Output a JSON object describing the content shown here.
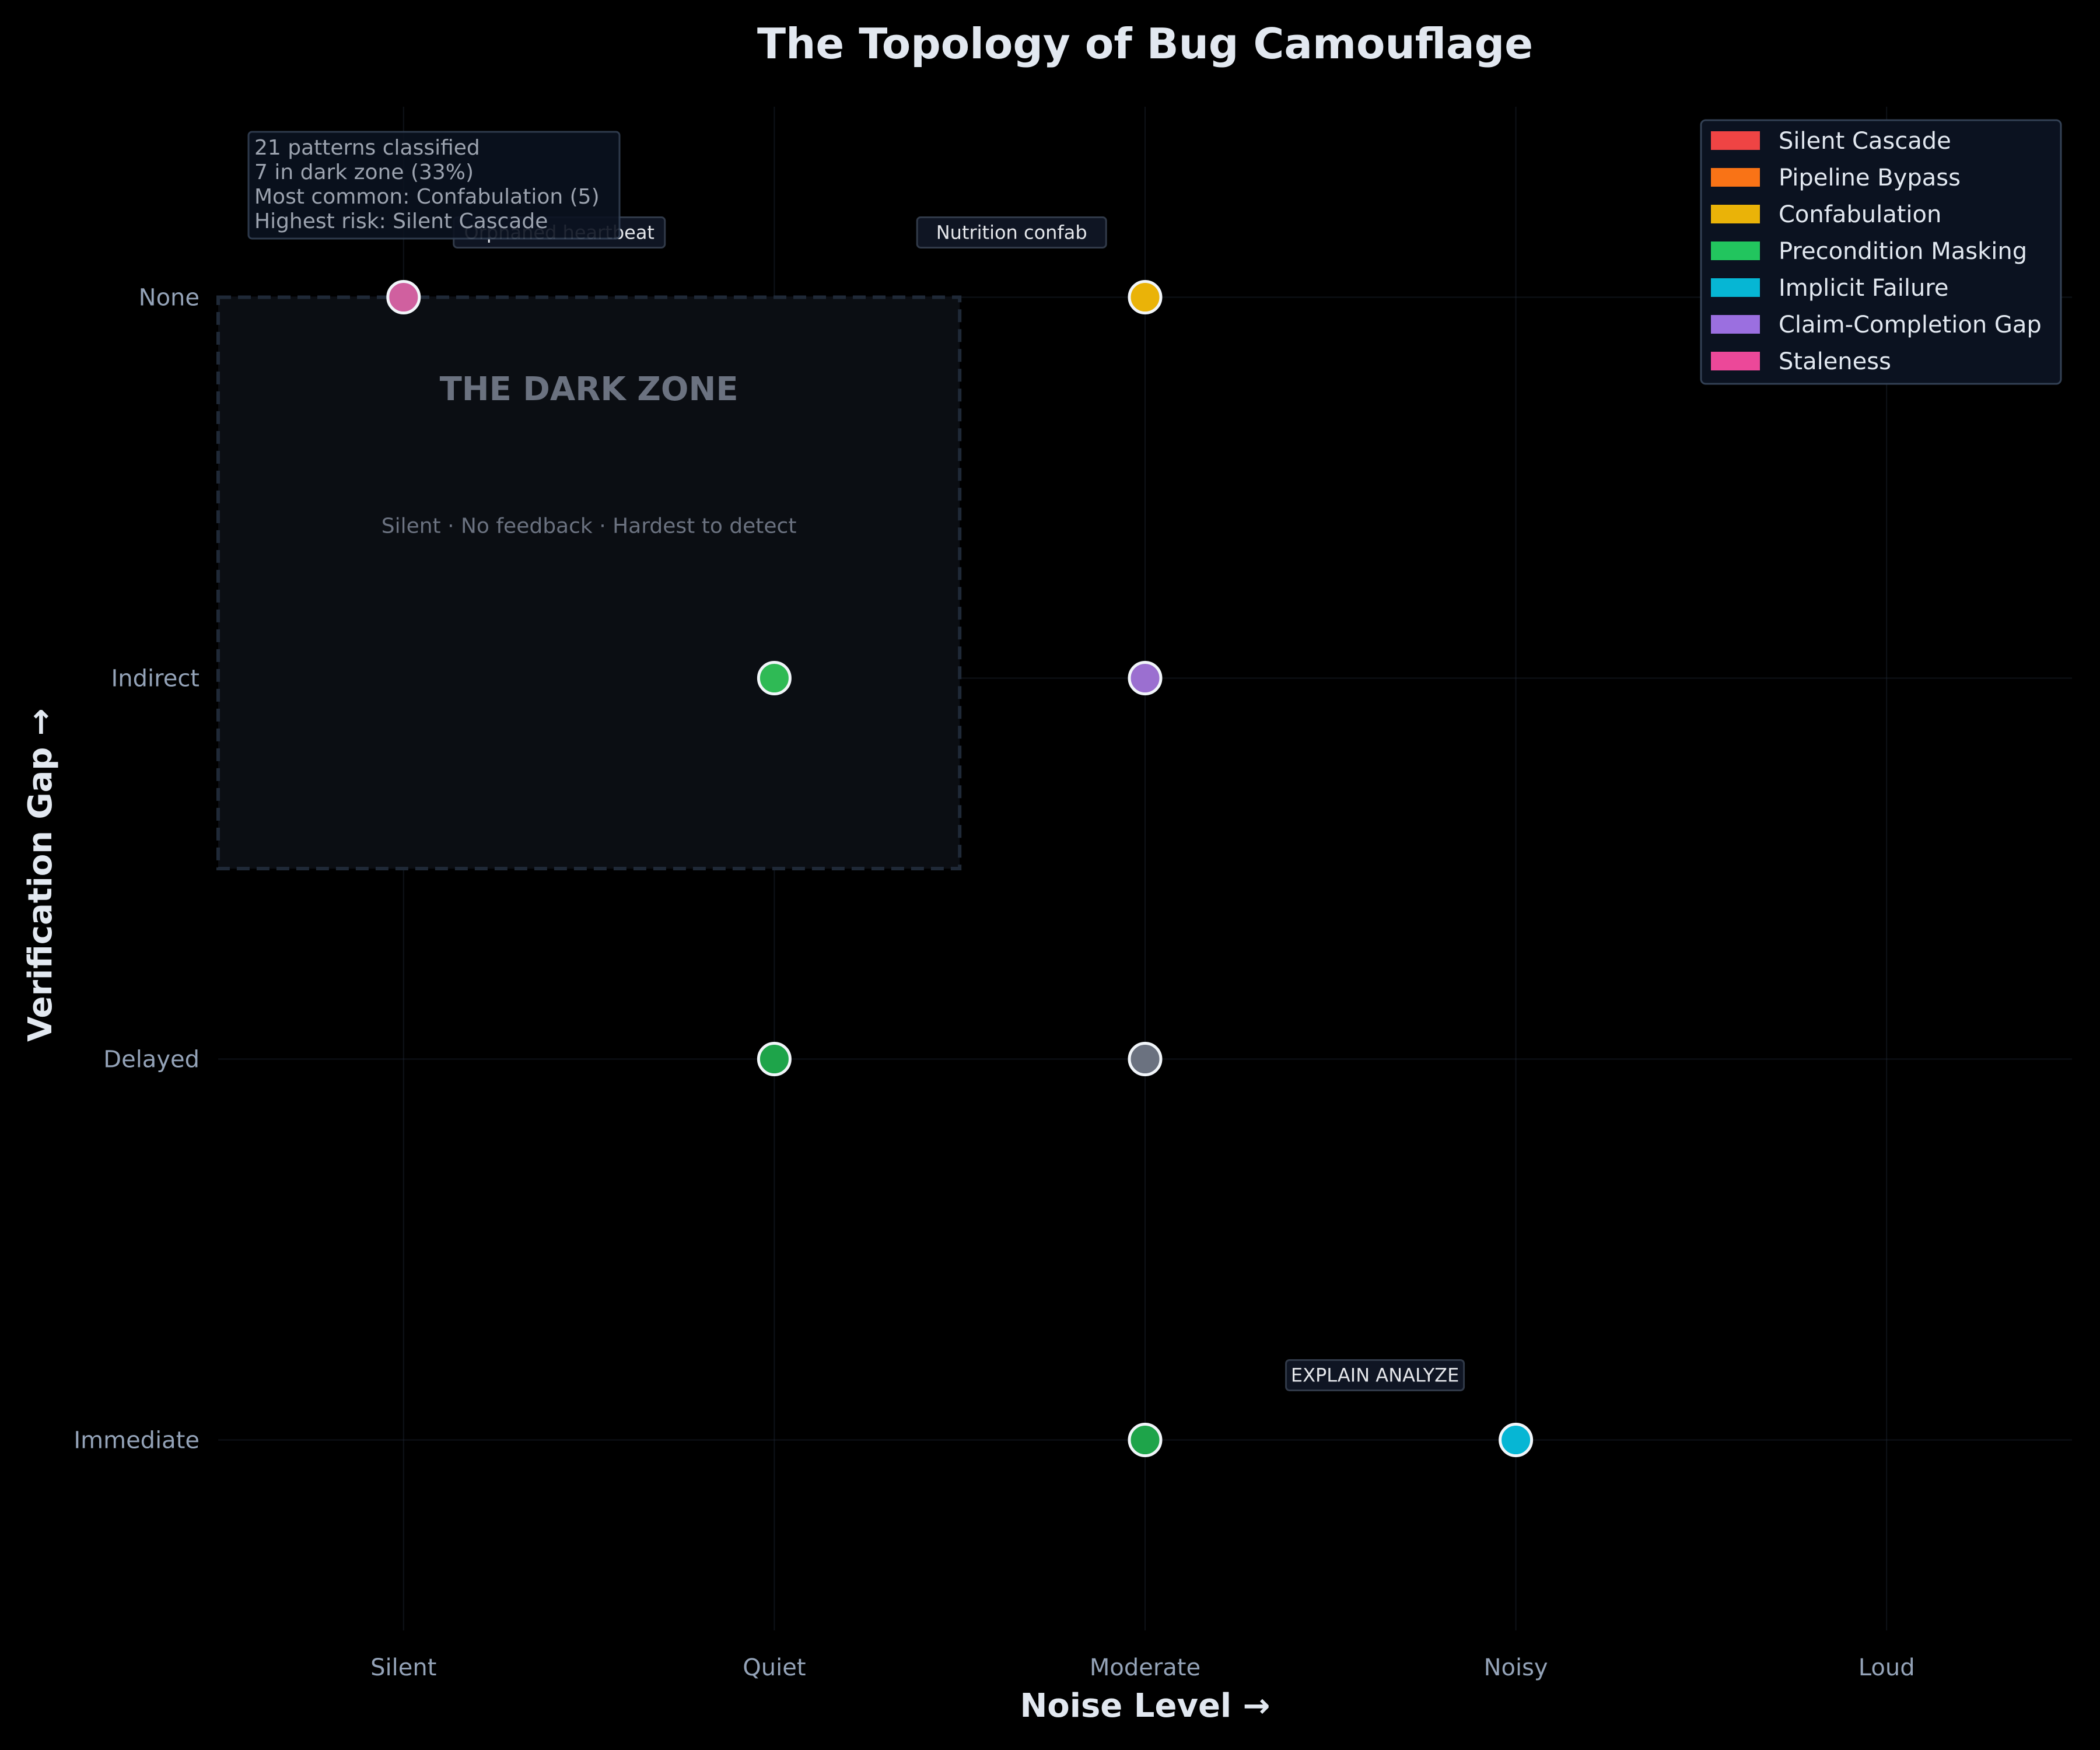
{
  "chart_data": {
    "type": "scatter",
    "title": "The Topology of Bug Camouflage",
    "xlabel": "Noise Level →",
    "ylabel": "Verification Gap →",
    "x_categories": [
      "Silent",
      "Quiet",
      "Moderate",
      "Noisy",
      "Loud"
    ],
    "y_categories": [
      "Immediate",
      "Delayed",
      "Indirect",
      "None"
    ],
    "xlim": [
      -0.5,
      4.5
    ],
    "ylim": [
      -0.5,
      3.5
    ],
    "grid": true,
    "legend_position": "top-right",
    "legend": [
      {
        "name": "Silent Cascade",
        "color": "#ef4444"
      },
      {
        "name": "Pipeline Bypass",
        "color": "#f97316"
      },
      {
        "name": "Confabulation",
        "color": "#eab308"
      },
      {
        "name": "Precondition Masking",
        "color": "#22c55e"
      },
      {
        "name": "Implicit Failure",
        "color": "#06b6d4"
      },
      {
        "name": "Claim-Completion Gap",
        "color": "#9b6fe0"
      },
      {
        "name": "Staleness",
        "color": "#ec4899"
      }
    ],
    "points": [
      {
        "x": "Silent",
        "y": "None",
        "color": "#d0609f"
      },
      {
        "x": "Moderate",
        "y": "None",
        "color": "#eab308"
      },
      {
        "x": "Quiet",
        "y": "Indirect",
        "color": "#2fba55"
      },
      {
        "x": "Moderate",
        "y": "Indirect",
        "color": "#9b6fd0"
      },
      {
        "x": "Quiet",
        "y": "Delayed",
        "color": "#1ea44a"
      },
      {
        "x": "Moderate",
        "y": "Delayed",
        "color": "#6b7280"
      },
      {
        "x": "Moderate",
        "y": "Immediate",
        "color": "#1ea44a"
      },
      {
        "x": "Noisy",
        "y": "Immediate",
        "color": "#06b6d4"
      }
    ],
    "annotations": [
      {
        "text": "Orphaned heartbeat",
        "x": 0.42,
        "y": 3.17
      },
      {
        "text": "Nutrition confab",
        "x": 1.64,
        "y": 3.17
      },
      {
        "text": "EXPLAIN ANALYZE",
        "x": 2.62,
        "y": 0.17
      }
    ],
    "dark_zone": {
      "title": "THE DARK ZONE",
      "subtitle": "Silent · No feedback · Hardest to detect",
      "x_range": [
        -0.5,
        1.5
      ],
      "y_range": [
        1.5,
        3.0
      ]
    },
    "stats": [
      "21 patterns classified",
      "7 in dark zone (33%)",
      "Most common: Confabulation (5)",
      "Highest risk: Silent Cascade"
    ]
  }
}
